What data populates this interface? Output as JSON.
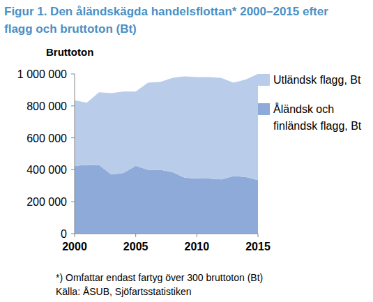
{
  "chart_data": {
    "type": "area",
    "title": "Figur 1. Den åländskägda handelsflottan* 2000–2015 efter flagg och bruttoton (Bt)",
    "y_label": "Bruttoton",
    "annotations": [
      "*) Omfattar endast fartyg över 300 bruttoton (Bt)",
      "Källa: ÅSUB, Sjöfartsstatistiken"
    ],
    "stacked": true,
    "grid": false,
    "legend": "right",
    "x": [
      2000,
      2001,
      2002,
      2003,
      2004,
      2005,
      2006,
      2007,
      2008,
      2009,
      2010,
      2011,
      2012,
      2013,
      2014,
      2015
    ],
    "xlim": [
      2000,
      2015
    ],
    "xticks": [
      2000,
      2005,
      2010,
      2015
    ],
    "ylim": [
      0,
      1000000
    ],
    "yticks": [
      {
        "value": 0,
        "label": "0"
      },
      {
        "value": 200000,
        "label": "200 000"
      },
      {
        "value": 400000,
        "label": "400 000"
      },
      {
        "value": 600000,
        "label": "600 000"
      },
      {
        "value": 800000,
        "label": "800 000"
      },
      {
        "value": 1000000,
        "label": "1 000 000"
      }
    ],
    "series": [
      {
        "name": "Åländsk och finländsk flagg, Bt",
        "color": "#8eaad8",
        "values": [
          425000,
          430000,
          430000,
          370000,
          380000,
          425000,
          400000,
          400000,
          385000,
          350000,
          345000,
          345000,
          340000,
          360000,
          355000,
          335000
        ]
      },
      {
        "name": "Utländsk flagg, Bt",
        "color": "#b9cdea",
        "values": [
          410000,
          390000,
          455000,
          510000,
          510000,
          465000,
          545000,
          550000,
          590000,
          635000,
          635000,
          635000,
          635000,
          585000,
          610000,
          665000
        ]
      }
    ]
  }
}
